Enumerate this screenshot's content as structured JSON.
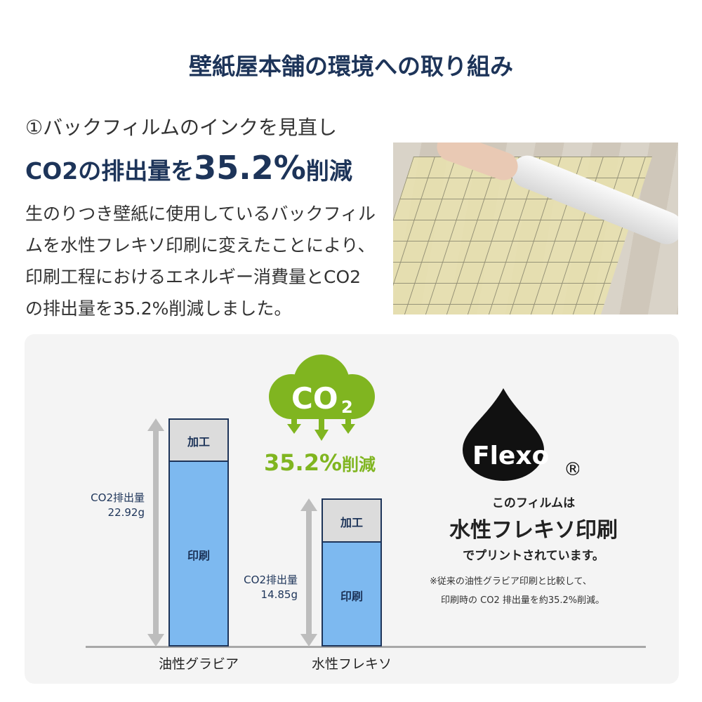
{
  "header": {
    "title": "壁紙屋本舗の環境への取り組み"
  },
  "section": {
    "number": "①",
    "subtitle": "バックフィルムのインクを見直し",
    "headline_prefix": "CO2の排出量を",
    "headline_value": "35.2%",
    "headline_suffix": "削減",
    "description": "生のりつき壁紙に使用しているバックフィルムを水性フレキソ印刷に変えたことにより、印刷工程におけるエネルギー消費量とCO2の排出量を35.2%削減しました。",
    "photo_alt": "バックフィルムの写真"
  },
  "badge": {
    "cloud_text": "CO",
    "cloud_sub": "2",
    "reduction_value": "35.2%",
    "reduction_label": "削減",
    "color": "#80b520"
  },
  "flexo": {
    "logo_text": "Flexo",
    "registered": "®",
    "line1": "このフィルムは",
    "line2": "水性フレキソ印刷",
    "line3": "でプリントされています。",
    "note1": "※従来の油性グラビア印刷と比較して、",
    "note2": "印刷時の CO2 排出量を約35.2%削減。"
  },
  "chart_data": {
    "type": "bar",
    "stacked": true,
    "categories": [
      "油性グラビア",
      "水性フレキソ"
    ],
    "series": [
      {
        "name": "印刷",
        "values": [
          18.7,
          10.6
        ],
        "color": "#7db9f0"
      },
      {
        "name": "加工",
        "values": [
          4.2,
          4.25
        ],
        "color": "#dcdcdc"
      }
    ],
    "totals": [
      22.92,
      14.85
    ],
    "total_labels": [
      {
        "label": "CO2排出量",
        "value": "22.92g"
      },
      {
        "label": "CO2排出量",
        "value": "14.85g"
      }
    ],
    "unit": "g",
    "ylim": [
      0,
      23
    ]
  }
}
